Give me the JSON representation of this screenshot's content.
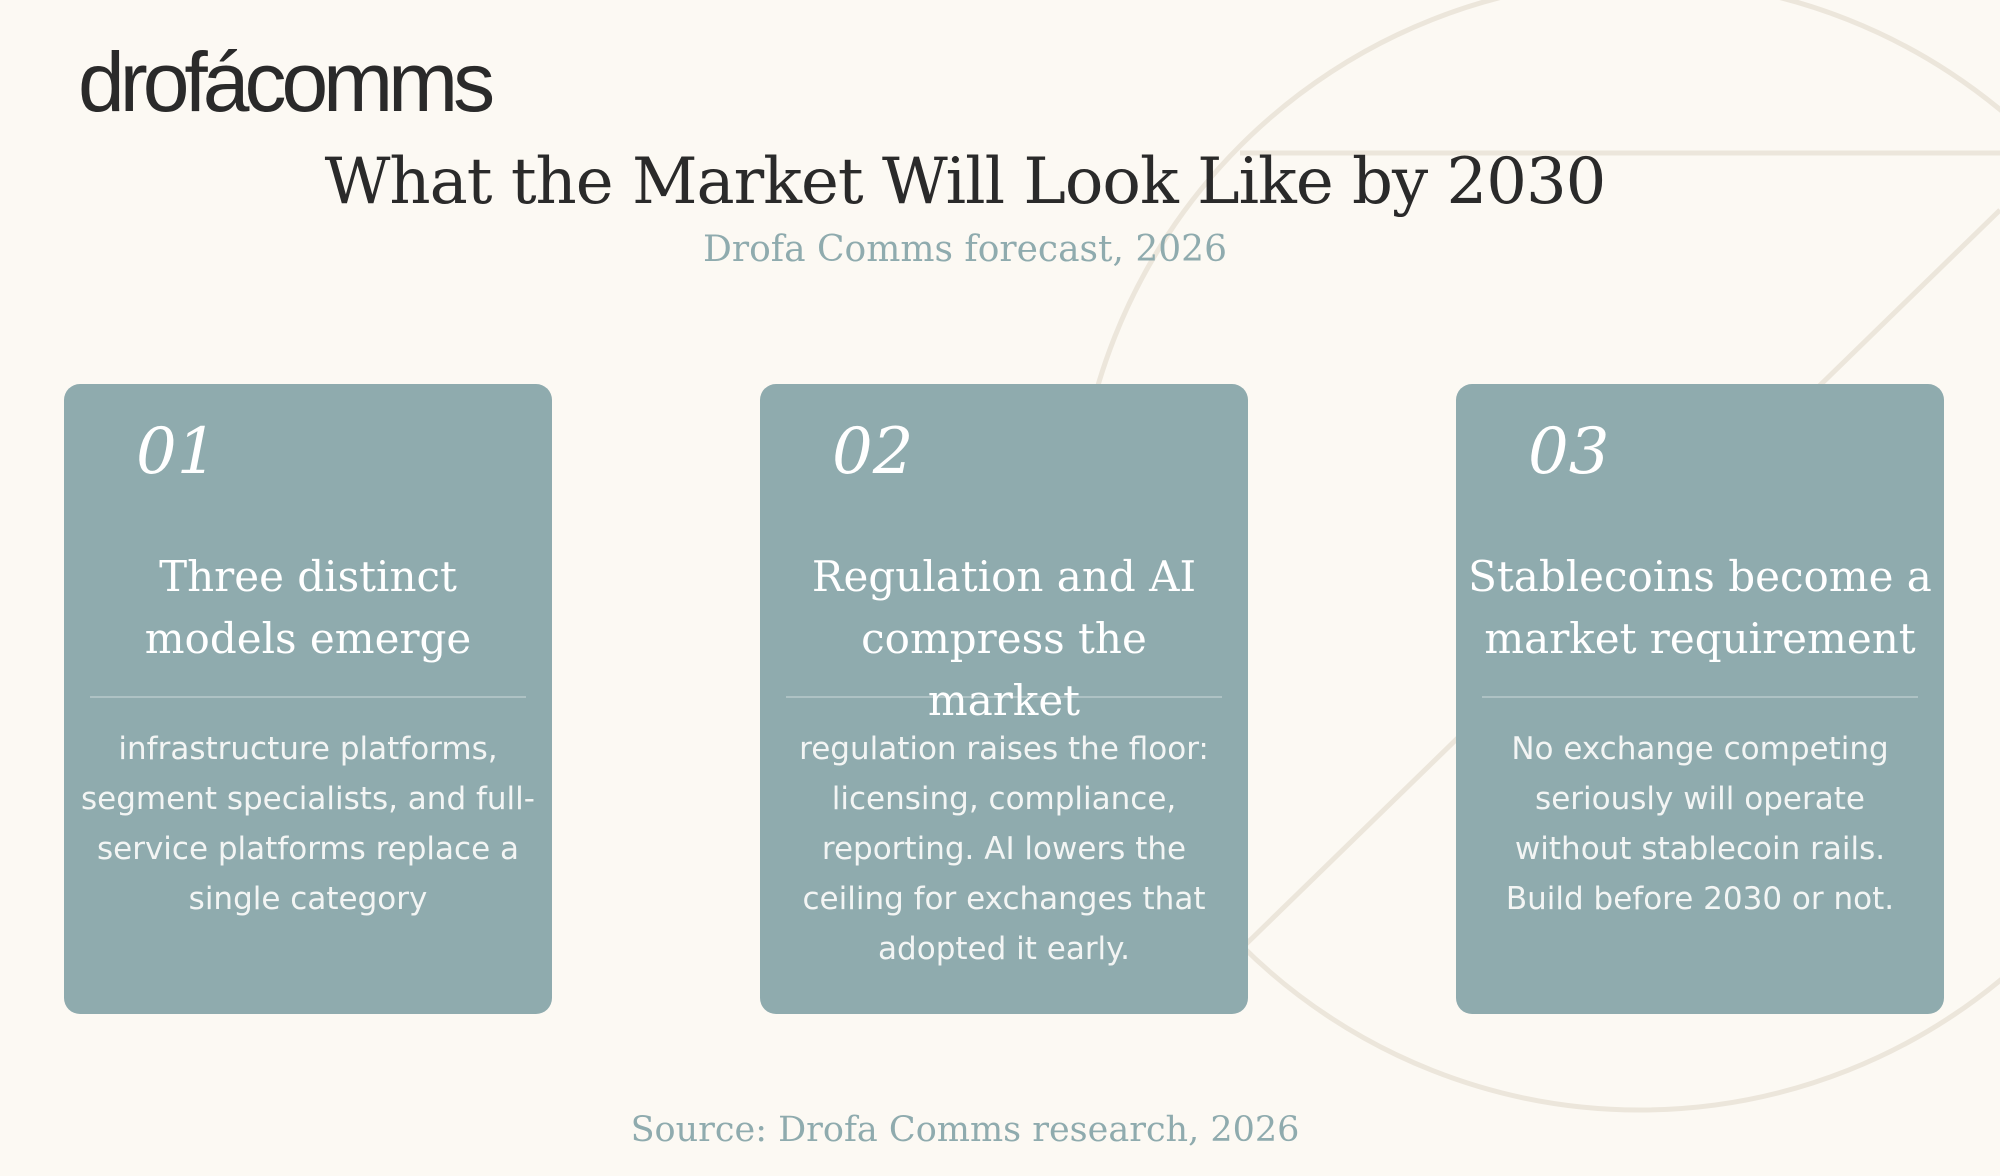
{
  "brand": {
    "logo_text": "drofácomms"
  },
  "header": {
    "title": "What the Market Will Look Like by 2030",
    "subtitle": "Drofa Comms forecast, 2026"
  },
  "cards": [
    {
      "number": "01",
      "title": "Three distinct models emerge",
      "body": "infrastructure platforms, segment specialists, and full-service platforms replace a single category"
    },
    {
      "number": "02",
      "title": "Regulation and AI compress the market",
      "body": "regulation raises the floor: licensing, compliance, reporting. AI lowers the ceiling for exchanges that adopted it early."
    },
    {
      "number": "03",
      "title": "Stablecoins become a market requirement",
      "body": "No exchange competing seriously will operate without stablecoin rails. Build before 2030 or not."
    }
  ],
  "footer": {
    "source": "Source: Drofa Comms research, 2026"
  },
  "colors": {
    "background": "#fcf9f3",
    "card": "#8fabae",
    "text_dark": "#2a2a2a",
    "accent": "#8fabae"
  }
}
